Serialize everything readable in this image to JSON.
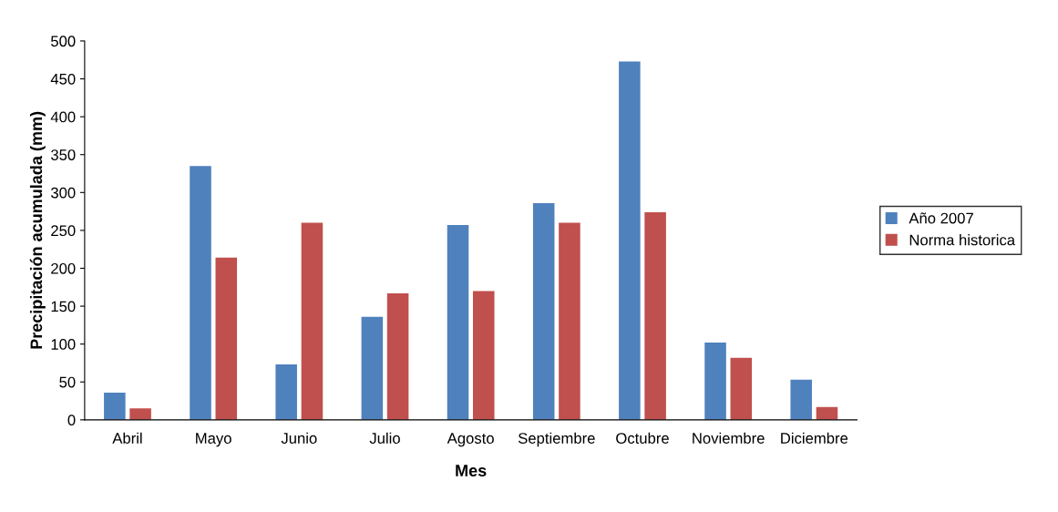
{
  "chart_data": {
    "type": "bar",
    "xlabel": "Mes",
    "ylabel": "Precipitación acumulada (mm)",
    "categories": [
      "Abril",
      "Mayo",
      "Junio",
      "Julio",
      "Agosto",
      "Septiembre",
      "Octubre",
      "Noviembre",
      "Diciembre"
    ],
    "series": [
      {
        "name": "Año 2007",
        "color": "#4f81bd",
        "values": [
          36,
          335,
          73,
          136,
          257,
          286,
          473,
          102,
          53
        ]
      },
      {
        "name": "Norma historica",
        "color": "#c0504d",
        "values": [
          15,
          214,
          260,
          167,
          170,
          260,
          274,
          82,
          17
        ]
      }
    ],
    "ylim": [
      0,
      500
    ],
    "yticks": [
      0,
      50,
      100,
      150,
      200,
      250,
      300,
      350,
      400,
      450,
      500
    ],
    "legend": "right",
    "grid": false
  }
}
